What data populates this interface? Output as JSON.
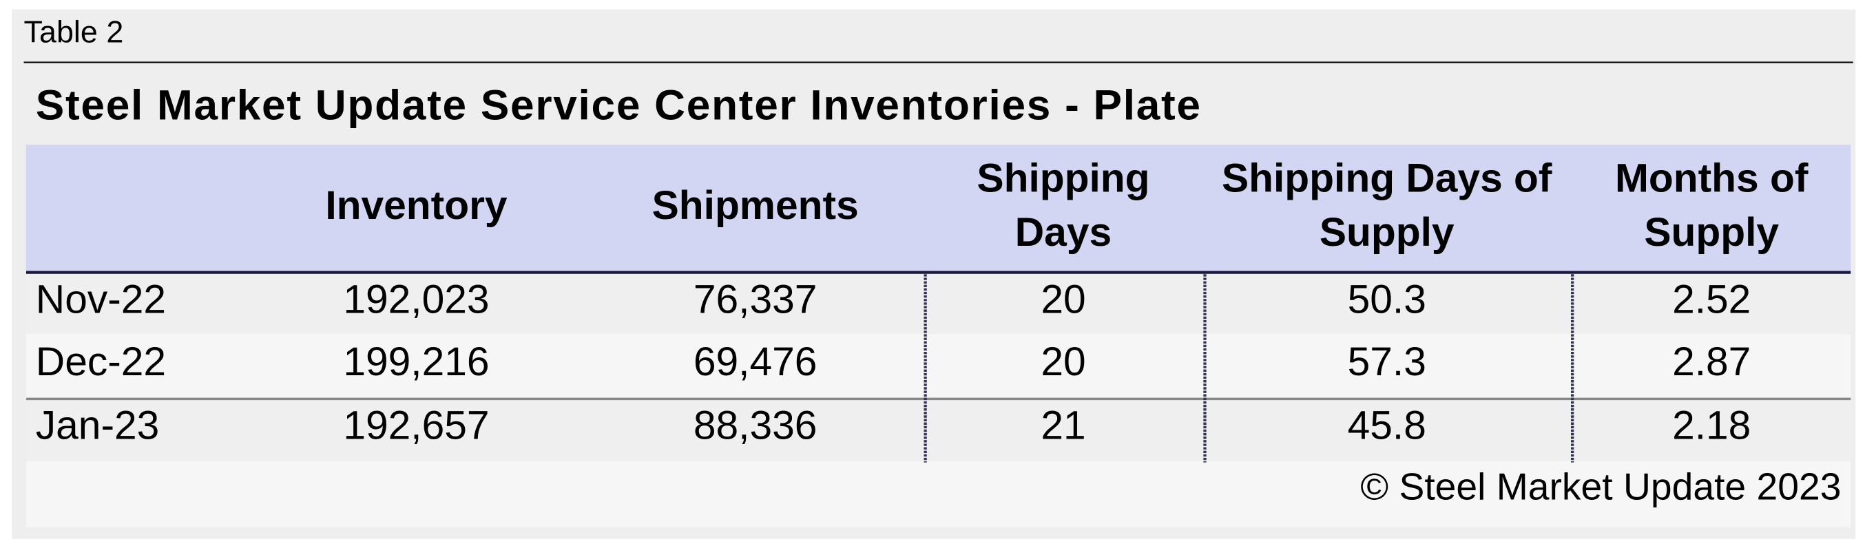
{
  "label": "Table 2",
  "title": "Steel Market Update Service Center Inventories - Plate",
  "columns": [
    [
      "Inventory"
    ],
    [
      "Shipments"
    ],
    [
      "Shipping",
      "Days"
    ],
    [
      "Shipping Days of",
      "Supply"
    ],
    [
      "Months of",
      "Supply"
    ]
  ],
  "rows": [
    [
      "Nov-22",
      "192,023",
      "76,337",
      "20",
      "50.3",
      "2.52"
    ],
    [
      "Dec-22",
      "199,216",
      "69,476",
      "20",
      "57.3",
      "2.87"
    ],
    [
      "Jan-23",
      "192,657",
      "88,336",
      "21",
      "45.8",
      "2.18"
    ]
  ],
  "footer": "© Steel Market Update 2023"
}
